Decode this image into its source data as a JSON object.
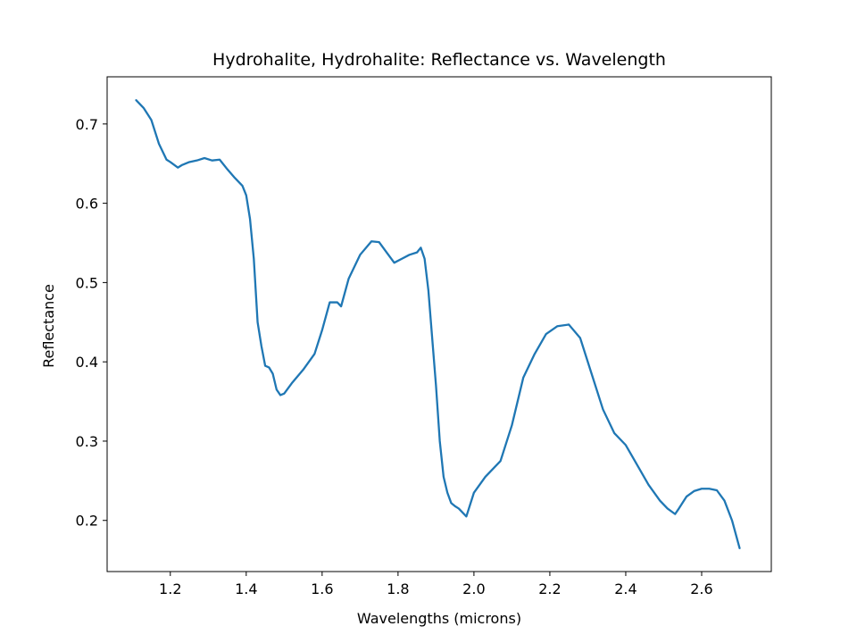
{
  "chart_data": {
    "type": "line",
    "title": "Hydrohalite, Hydrohalite: Reflectance vs. Wavelength",
    "xlabel": "Wavelengths (microns)",
    "ylabel": "Reflectance",
    "xlim": [
      1.0335,
      2.7835
    ],
    "ylim": [
      0.1355,
      0.7595
    ],
    "xticks": [
      1.2,
      1.4,
      1.6,
      1.8,
      2.0,
      2.2,
      2.4,
      2.6
    ],
    "xtick_labels": [
      "1.2",
      "1.4",
      "1.6",
      "1.8",
      "2.0",
      "2.2",
      "2.4",
      "2.6"
    ],
    "yticks": [
      0.2,
      0.3,
      0.4,
      0.5,
      0.6,
      0.7
    ],
    "ytick_labels": [
      "0.2",
      "0.3",
      "0.4",
      "0.5",
      "0.6",
      "0.7"
    ],
    "grid": false,
    "series": [
      {
        "color": "#1f77b4",
        "x": [
          1.11,
          1.13,
          1.15,
          1.17,
          1.19,
          1.2,
          1.22,
          1.23,
          1.25,
          1.27,
          1.29,
          1.31,
          1.33,
          1.35,
          1.37,
          1.39,
          1.4,
          1.41,
          1.42,
          1.43,
          1.44,
          1.45,
          1.46,
          1.47,
          1.48,
          1.49,
          1.5,
          1.52,
          1.55,
          1.58,
          1.6,
          1.62,
          1.64,
          1.65,
          1.67,
          1.7,
          1.73,
          1.75,
          1.77,
          1.79,
          1.81,
          1.83,
          1.85,
          1.86,
          1.87,
          1.88,
          1.89,
          1.9,
          1.91,
          1.92,
          1.93,
          1.94,
          1.95,
          1.96,
          1.98,
          2.0,
          2.03,
          2.07,
          2.1,
          2.13,
          2.16,
          2.19,
          2.22,
          2.25,
          2.28,
          2.31,
          2.34,
          2.37,
          2.4,
          2.43,
          2.46,
          2.49,
          2.51,
          2.53,
          2.54,
          2.56,
          2.58,
          2.6,
          2.62,
          2.64,
          2.66,
          2.68,
          2.7
        ],
        "y": [
          0.73,
          0.72,
          0.705,
          0.675,
          0.655,
          0.652,
          0.645,
          0.648,
          0.652,
          0.654,
          0.657,
          0.654,
          0.655,
          0.643,
          0.632,
          0.622,
          0.61,
          0.58,
          0.53,
          0.45,
          0.42,
          0.395,
          0.393,
          0.385,
          0.365,
          0.358,
          0.36,
          0.373,
          0.39,
          0.41,
          0.44,
          0.475,
          0.475,
          0.47,
          0.505,
          0.535,
          0.552,
          0.551,
          0.538,
          0.525,
          0.53,
          0.535,
          0.538,
          0.544,
          0.53,
          0.49,
          0.43,
          0.37,
          0.3,
          0.255,
          0.235,
          0.222,
          0.218,
          0.215,
          0.205,
          0.235,
          0.255,
          0.275,
          0.32,
          0.38,
          0.41,
          0.435,
          0.445,
          0.447,
          0.43,
          0.385,
          0.34,
          0.31,
          0.295,
          0.27,
          0.245,
          0.225,
          0.215,
          0.208,
          0.215,
          0.23,
          0.237,
          0.24,
          0.24,
          0.238,
          0.225,
          0.2,
          0.165
        ]
      }
    ]
  }
}
